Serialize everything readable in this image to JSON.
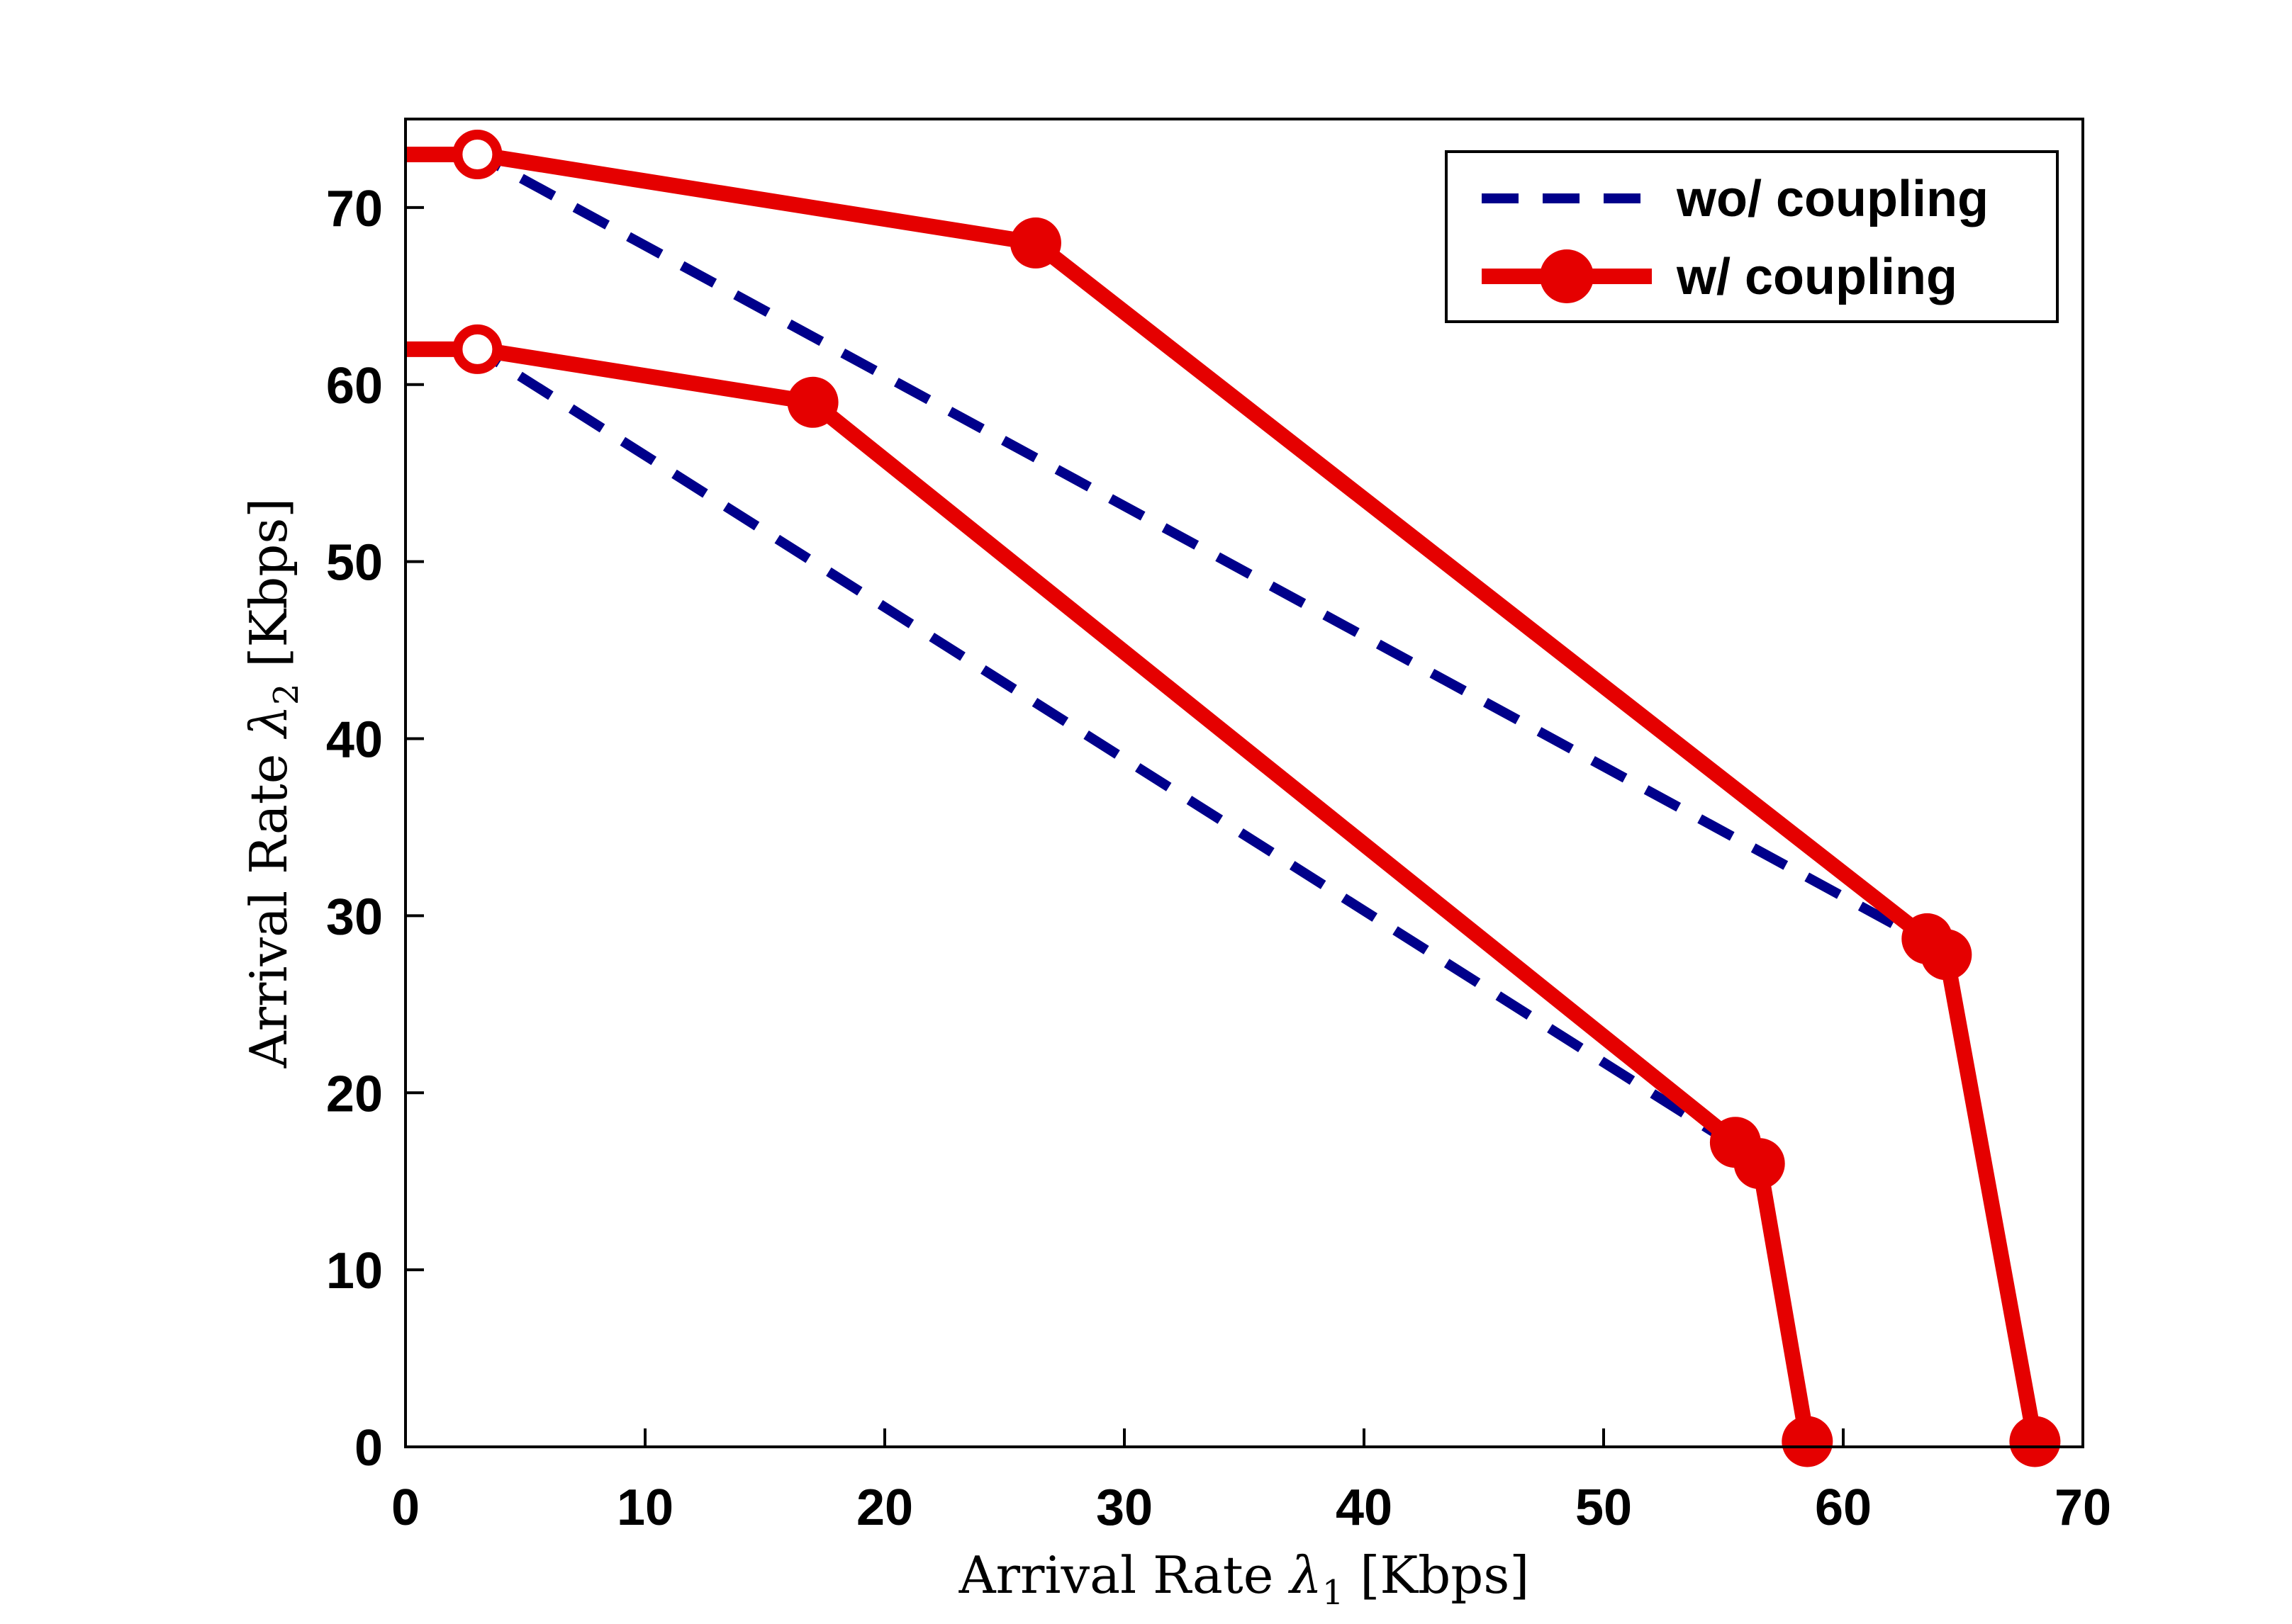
{
  "chart_data": {
    "type": "line",
    "title": "",
    "xlabel": "Arrival Rate λ1 [Kbps]",
    "ylabel": "Arrival Rate λ2 [Kbps]",
    "xlabel_main": "Arrival Rate ",
    "xlabel_sym": "λ",
    "xlabel_sub": "1",
    "xlabel_unit": " [Kbps]",
    "ylabel_main": "Arrival Rate ",
    "ylabel_sym": "λ",
    "ylabel_sub": "2",
    "ylabel_unit": " [Kbps]",
    "xlim": [
      0,
      70
    ],
    "ylim": [
      0,
      75
    ],
    "xticks": [
      0,
      10,
      20,
      30,
      40,
      50,
      60,
      70
    ],
    "yticks": [
      0,
      10,
      20,
      30,
      40,
      50,
      60,
      70
    ],
    "grid": false,
    "legend_position": "top-right",
    "series": [
      {
        "name": "wo/ coupling",
        "style": "dashed",
        "color": "#00008B",
        "legend": true,
        "x": [
          0,
          3,
          63.5
        ],
        "y": [
          73,
          73,
          28.5
        ]
      },
      {
        "name": "wo/ coupling",
        "style": "dashed",
        "color": "#00008B",
        "legend": false,
        "x": [
          0,
          3,
          55.5
        ],
        "y": [
          62,
          62,
          17
        ]
      },
      {
        "name": "w/ coupling",
        "style": "solid-markers",
        "color": "#E50000",
        "legend": true,
        "x": [
          0,
          3,
          26.3,
          63.5,
          64.3,
          68
        ],
        "y": [
          73,
          73,
          68,
          28.7,
          27.8,
          0.3
        ]
      },
      {
        "name": "w/ coupling",
        "style": "solid-markers",
        "color": "#E50000",
        "legend": false,
        "x": [
          0,
          3,
          17,
          55.5,
          56.5,
          58.5
        ],
        "y": [
          62,
          62,
          59,
          17.2,
          16,
          0.3
        ]
      }
    ]
  }
}
